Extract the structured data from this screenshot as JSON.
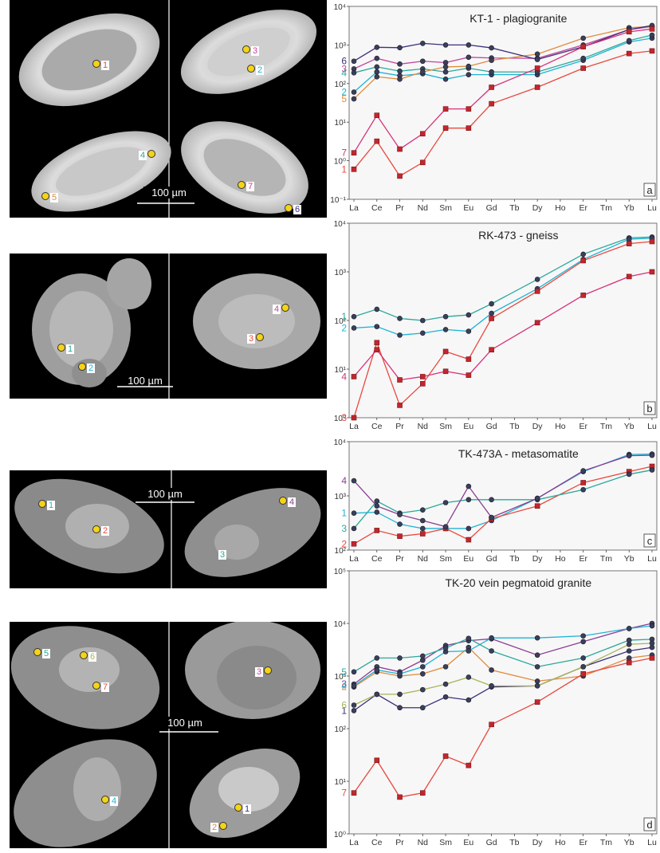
{
  "elements": [
    "La",
    "Ce",
    "Pr",
    "Nd",
    "Sm",
    "Eu",
    "Gd",
    "Tb",
    "Dy",
    "Ho",
    "Er",
    "Tm",
    "Yb",
    "Lu"
  ],
  "scale_bar_label": "100 µm",
  "photos": [
    {
      "spots": [
        "1",
        "3",
        "2",
        "4",
        "5",
        "7",
        "6"
      ]
    },
    {
      "spots": [
        "1",
        "2",
        "3",
        "4"
      ]
    },
    {
      "spots": [
        "1",
        "2",
        "3",
        "4"
      ]
    },
    {
      "spots": [
        "5",
        "6",
        "7",
        "3",
        "4",
        "1",
        "2"
      ]
    }
  ],
  "chart_data": [
    {
      "type": "line",
      "title": "KT-1 - plagiogranite",
      "panel_label": "a",
      "ylog": true,
      "ylim": [
        0.1,
        10000
      ],
      "y_tick_labels": [
        "10⁻¹",
        "10⁰",
        "10¹",
        "10²",
        "10³",
        "10⁴"
      ],
      "series": [
        {
          "name": "1",
          "color": "#e8493f",
          "marker": "square",
          "values": [
            0.6,
            3.2,
            0.4,
            0.9,
            7,
            7,
            30,
            null,
            80,
            null,
            250,
            null,
            600,
            700
          ]
        },
        {
          "name": "2",
          "color": "#1eb3d6",
          "marker": "circle",
          "values": [
            60,
            200,
            160,
            180,
            130,
            170,
            170,
            null,
            170,
            null,
            400,
            null,
            1200,
            1500
          ]
        },
        {
          "name": "3",
          "color": "#c0479b",
          "marker": "circle",
          "values": [
            240,
            450,
            320,
            380,
            350,
            480,
            460,
            null,
            450,
            null,
            1000,
            null,
            2500,
            3000
          ]
        },
        {
          "name": "4",
          "color": "#2aa89a",
          "marker": "circle",
          "values": [
            190,
            270,
            210,
            240,
            200,
            250,
            200,
            null,
            200,
            null,
            450,
            null,
            1300,
            1800
          ]
        },
        {
          "name": "5",
          "color": "#e08a3c",
          "marker": "circle",
          "values": [
            40,
            150,
            130,
            200,
            270,
            280,
            400,
            null,
            580,
            null,
            1500,
            null,
            2800,
            3000
          ]
        },
        {
          "name": "6",
          "color": "#3d2f7a",
          "marker": "circle",
          "values": [
            380,
            870,
            850,
            1100,
            1000,
            1000,
            840,
            null,
            420,
            null,
            900,
            null,
            2500,
            3200
          ]
        },
        {
          "name": "7",
          "color": "#d6317a",
          "marker": "square",
          "values": [
            1.6,
            15,
            2,
            5,
            22,
            22,
            80,
            null,
            250,
            null,
            900,
            null,
            2200,
            2600
          ]
        }
      ]
    },
    {
      "type": "line",
      "title": "RK-473 - gneiss",
      "panel_label": "b",
      "ylog": true,
      "ylim": [
        1,
        10000
      ],
      "y_tick_labels": [
        "10⁰",
        "10¹",
        "10²",
        "10³",
        "10⁴"
      ],
      "series": [
        {
          "name": "1",
          "color": "#2aa89a",
          "marker": "circle",
          "values": [
            120,
            170,
            110,
            100,
            120,
            130,
            220,
            null,
            700,
            null,
            2300,
            null,
            5000,
            5200
          ]
        },
        {
          "name": "2",
          "color": "#1eb3d6",
          "marker": "circle",
          "values": [
            70,
            75,
            50,
            55,
            65,
            60,
            140,
            null,
            450,
            null,
            1800,
            null,
            4700,
            4900
          ]
        },
        {
          "name": "3",
          "color": "#e8493f",
          "marker": "square",
          "values": [
            1,
            35,
            1.8,
            5,
            23,
            16,
            110,
            null,
            400,
            null,
            1700,
            null,
            3800,
            4200
          ]
        },
        {
          "name": "4",
          "color": "#d6317a",
          "marker": "square",
          "values": [
            7,
            25,
            6,
            7,
            9,
            7.5,
            25,
            null,
            90,
            null,
            330,
            null,
            800,
            1000
          ]
        }
      ]
    },
    {
      "type": "line",
      "title": "TK-473A - metasomatite",
      "panel_label": "c",
      "ylog": true,
      "ylim": [
        100,
        10000
      ],
      "y_tick_labels": [
        "10²",
        "10³",
        "10⁴"
      ],
      "series": [
        {
          "name": "1",
          "color": "#1eb3d6",
          "marker": "circle",
          "values": [
            480,
            500,
            300,
            250,
            250,
            250,
            350,
            null,
            900,
            null,
            2800,
            null,
            5800,
            5900
          ]
        },
        {
          "name": "2",
          "color": "#e8493f",
          "marker": "square",
          "values": [
            130,
            230,
            180,
            200,
            250,
            155,
            380,
            null,
            650,
            null,
            1750,
            null,
            2800,
            3500
          ]
        },
        {
          "name": "3",
          "color": "#2aa89a",
          "marker": "circle",
          "values": [
            250,
            800,
            480,
            550,
            750,
            850,
            850,
            null,
            850,
            null,
            1300,
            null,
            2500,
            3000
          ]
        },
        {
          "name": "4",
          "color": "#8c3c92",
          "marker": "circle",
          "values": [
            1900,
            650,
            450,
            350,
            270,
            1500,
            400,
            null,
            900,
            null,
            2900,
            null,
            5500,
            5600
          ]
        }
      ]
    },
    {
      "type": "line",
      "title": "TK-20 vein pegmatoid granite",
      "panel_label": "d",
      "ylog": true,
      "ylim": [
        1,
        100000
      ],
      "y_tick_labels": [
        "10⁰",
        "10¹",
        "10²",
        "10³",
        "10⁴",
        "10⁵"
      ],
      "series": [
        {
          "name": "1",
          "color": "#3d2f7a",
          "marker": "circle",
          "values": [
            220,
            450,
            250,
            250,
            400,
            350,
            620,
            null,
            650,
            null,
            1500,
            null,
            3000,
            3500
          ]
        },
        {
          "name": "2",
          "color": "#e08a3c",
          "marker": "circle",
          "values": [
            620,
            1200,
            1000,
            1100,
            1500,
            3500,
            1300,
            null,
            800,
            null,
            1000,
            null,
            2200,
            2500
          ]
        },
        {
          "name": "3",
          "color": "#8c3c92",
          "marker": "circle",
          "values": [
            700,
            1500,
            1200,
            2000,
            3800,
            4700,
            5100,
            null,
            2500,
            null,
            4500,
            null,
            8000,
            10000
          ]
        },
        {
          "name": "4",
          "color": "#1eb3d6",
          "marker": "circle",
          "values": [
            650,
            1300,
            1100,
            1500,
            2900,
            3000,
            5300,
            null,
            5300,
            null,
            5800,
            null,
            8000,
            9000
          ]
        },
        {
          "name": "5",
          "color": "#2aa89a",
          "marker": "circle",
          "values": [
            1200,
            2200,
            2200,
            2400,
            3400,
            5200,
            3000,
            null,
            1500,
            null,
            2200,
            null,
            4800,
            5000
          ]
        },
        {
          "name": "6",
          "color": "#a8b45a",
          "marker": "circle",
          "values": [
            280,
            450,
            450,
            550,
            700,
            950,
            650,
            null,
            650,
            null,
            1500,
            null,
            4000,
            4200
          ]
        },
        {
          "name": "7",
          "color": "#e8493f",
          "marker": "square",
          "values": [
            6,
            25,
            5,
            6,
            30,
            20,
            120,
            null,
            320,
            null,
            1100,
            null,
            1800,
            2200
          ]
        }
      ]
    }
  ]
}
